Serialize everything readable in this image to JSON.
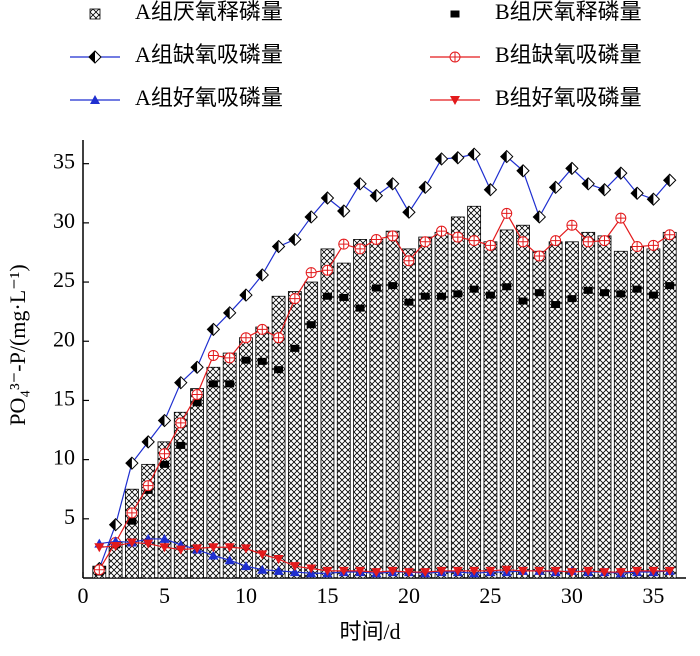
{
  "chart_data": {
    "type": "bar",
    "xlabel": "时间/d",
    "ylabel": "PO₄³⁻-P/(mg·L⁻¹)",
    "x": [
      1,
      2,
      3,
      4,
      5,
      6,
      7,
      8,
      9,
      10,
      11,
      12,
      13,
      14,
      15,
      16,
      17,
      18,
      19,
      20,
      21,
      22,
      23,
      24,
      25,
      26,
      27,
      28,
      29,
      30,
      31,
      32,
      33,
      34,
      35,
      36
    ],
    "xlim": [
      0,
      37
    ],
    "xticks": [
      0,
      5,
      10,
      15,
      20,
      25,
      30,
      35
    ],
    "ylim": [
      0,
      37
    ],
    "yticks": [
      5,
      10,
      15,
      20,
      25,
      30,
      35
    ],
    "series": [
      {
        "name": "A组厌氧释磷量",
        "kind": "bar",
        "color": "#000000",
        "values": [
          1.0,
          3.0,
          7.5,
          9.6,
          11.5,
          14.0,
          16.0,
          17.8,
          19.0,
          20.3,
          21.2,
          23.8,
          24.2,
          25.0,
          27.8,
          26.6,
          28.6,
          28.6,
          29.3,
          27.8,
          28.8,
          29.2,
          30.5,
          31.4,
          28.4,
          29.4,
          29.8,
          27.6,
          28.4,
          28.4,
          29.2,
          28.9,
          27.6,
          28.0,
          27.8,
          29.2
        ]
      },
      {
        "name": "B组厌氧释磷量",
        "kind": "square",
        "color": "#000000",
        "line": false,
        "values": [
          0.5,
          2.8,
          4.8,
          7.4,
          9.6,
          11.2,
          14.8,
          16.4,
          16.4,
          18.4,
          18.3,
          17.6,
          19.4,
          21.4,
          23.8,
          23.7,
          22.8,
          24.5,
          24.7,
          23.3,
          23.8,
          23.8,
          24.0,
          24.4,
          23.9,
          24.6,
          23.4,
          24.1,
          23.1,
          23.6,
          24.3,
          24.1,
          24.0,
          24.4,
          23.9,
          24.7
        ]
      },
      {
        "name": "A组缺氧吸磷量",
        "kind": "diamond",
        "color": "#1f2fd0",
        "line": true,
        "values": [
          0.8,
          4.5,
          9.7,
          11.5,
          13.3,
          16.5,
          17.8,
          21.0,
          22.4,
          23.9,
          25.6,
          28.0,
          28.6,
          30.5,
          32.1,
          31.0,
          33.3,
          32.3,
          33.3,
          30.9,
          33.0,
          35.4,
          35.5,
          35.8,
          32.8,
          35.6,
          34.4,
          30.5,
          33.0,
          34.6,
          33.3,
          32.8,
          34.2,
          32.5,
          32.0,
          33.6
        ]
      },
      {
        "name": "B组缺氧吸磷量",
        "kind": "circleplus",
        "color": "#e31a1c",
        "line": true,
        "values": [
          0.7,
          3.0,
          5.5,
          7.8,
          10.5,
          13.1,
          15.5,
          18.8,
          18.6,
          20.3,
          21.0,
          20.3,
          23.6,
          25.8,
          26.0,
          28.2,
          27.8,
          28.6,
          28.9,
          26.8,
          28.4,
          29.3,
          28.8,
          28.5,
          28.1,
          30.8,
          28.4,
          27.2,
          28.5,
          29.8,
          28.4,
          28.5,
          30.4,
          28.0,
          28.1,
          29.0
        ]
      },
      {
        "name": "A组好氧吸磷量",
        "kind": "triup",
        "color": "#1f2fd0",
        "line": true,
        "values": [
          2.9,
          3.1,
          3.0,
          3.3,
          3.3,
          2.8,
          2.4,
          1.9,
          1.5,
          1.0,
          0.7,
          0.6,
          0.5,
          0.4,
          0.4,
          0.5,
          0.5,
          0.4,
          0.5,
          0.5,
          0.4,
          0.5,
          0.5,
          0.4,
          0.5,
          0.5,
          0.6,
          0.6,
          0.5,
          0.6,
          0.5,
          0.5,
          0.4,
          0.5,
          0.5,
          0.6
        ]
      },
      {
        "name": "B组好氧吸磷量",
        "kind": "tridown",
        "color": "#e31a1c",
        "line": true,
        "values": [
          2.6,
          2.7,
          3.0,
          2.9,
          2.6,
          2.4,
          2.5,
          2.6,
          2.6,
          2.5,
          2.0,
          1.6,
          1.0,
          0.8,
          0.6,
          0.6,
          0.6,
          0.5,
          0.6,
          0.5,
          0.5,
          0.6,
          0.6,
          0.6,
          0.6,
          0.7,
          0.6,
          0.6,
          0.6,
          0.5,
          0.6,
          0.5,
          0.5,
          0.6,
          0.6,
          0.6
        ]
      }
    ]
  }
}
